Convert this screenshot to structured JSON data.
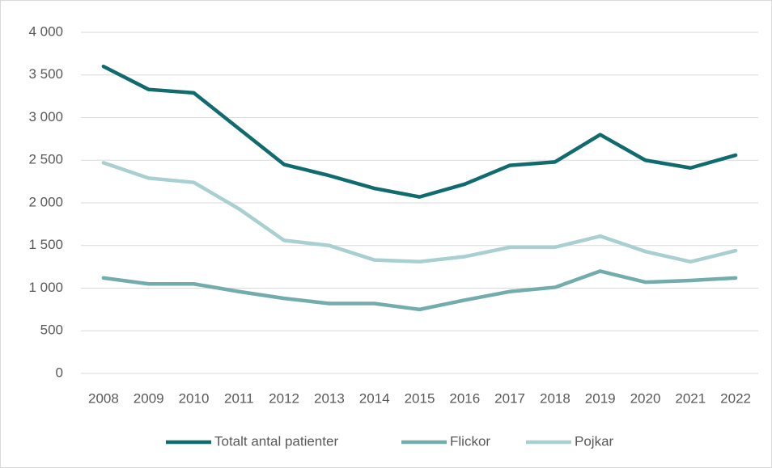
{
  "chart_data": {
    "type": "line",
    "categories": [
      "2008",
      "2009",
      "2010",
      "2011",
      "2012",
      "2013",
      "2014",
      "2015",
      "2016",
      "2017",
      "2018",
      "2019",
      "2020",
      "2021",
      "2022"
    ],
    "series": [
      {
        "name": "Totalt antal patienter",
        "color": "#0f6b6d",
        "values": [
          3600,
          3330,
          3290,
          2870,
          2450,
          2320,
          2170,
          2070,
          2220,
          2440,
          2480,
          2800,
          2500,
          2410,
          2560
        ]
      },
      {
        "name": "Flickor",
        "color": "#72acad",
        "values": [
          1120,
          1050,
          1050,
          960,
          880,
          820,
          820,
          750,
          860,
          960,
          1010,
          1200,
          1070,
          1090,
          1120
        ]
      },
      {
        "name": "Pojkar",
        "color": "#a8d0d0",
        "values": [
          2470,
          2290,
          2240,
          1930,
          1560,
          1500,
          1330,
          1310,
          1370,
          1480,
          1480,
          1610,
          1430,
          1310,
          1440
        ]
      }
    ],
    "ylim": [
      0,
      4000
    ],
    "yticks": [
      0,
      500,
      {
        "value": 1000,
        "label": "1 000"
      },
      {
        "value": 1500,
        "label": "1 500"
      },
      {
        "value": 2000,
        "label": "2 000"
      },
      {
        "value": 2500,
        "label": "2 500"
      },
      {
        "value": 3000,
        "label": "3 000"
      },
      {
        "value": 3500,
        "label": "3 500"
      },
      {
        "value": 4000,
        "label": "4 000"
      }
    ],
    "grid": true,
    "legend": "bottom"
  }
}
